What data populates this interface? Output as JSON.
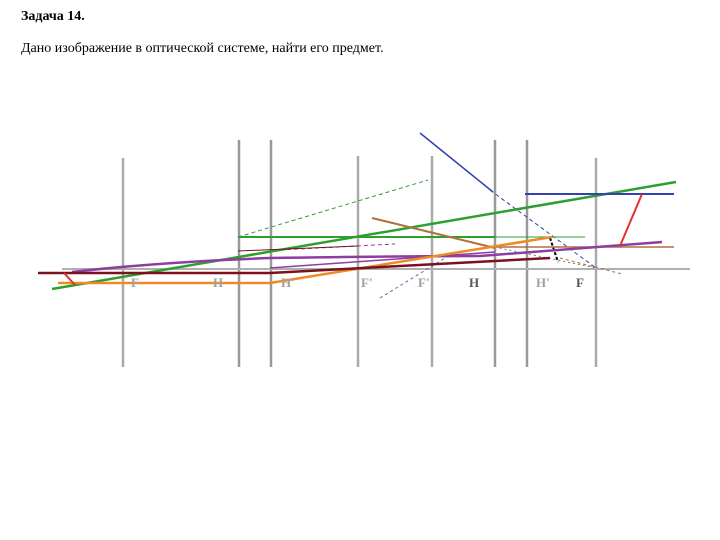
{
  "title": "Задача 14.",
  "task": "Дано изображение в оптической системе, найти его предмет.",
  "labels": {
    "f1": "F",
    "h1": "H",
    "h1p": "H'",
    "f1p": "F'",
    "f2": "F'",
    "h2": "H",
    "h2p": "H'",
    "f2p": "F"
  },
  "colors": {
    "axis": "#b0b0b0",
    "planes": "#999999",
    "green": "#2ca02c",
    "blue": "#3342b0",
    "orange": "#f08a24",
    "purple": "#8e3ea0",
    "brown": "#b07040",
    "maroon": "#7a1020",
    "red": "#e53030"
  }
}
